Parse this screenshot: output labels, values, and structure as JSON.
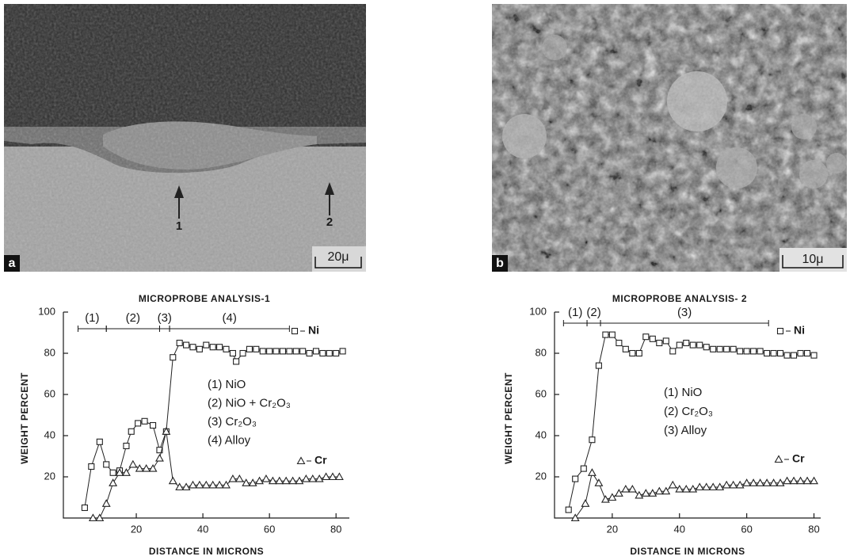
{
  "micrographs": [
    {
      "label": "a",
      "scale": "20μ",
      "arrows": [
        "1",
        "2"
      ]
    },
    {
      "label": "b",
      "scale": "10μ"
    }
  ],
  "chart_data": [
    {
      "type": "line",
      "title": "MICROPROBE ANALYSIS-1",
      "x_label": "DISTANCE IN MICRONS",
      "y_label": "WEIGHT PERCENT",
      "xlim": [
        0,
        84
      ],
      "ylim": [
        0,
        100
      ],
      "xticks": [
        20,
        40,
        60,
        80
      ],
      "yticks": [
        20,
        40,
        60,
        80,
        100
      ],
      "regions": [
        {
          "label": "(1)",
          "start": 2.5,
          "end": 11
        },
        {
          "label": "(2)",
          "start": 11,
          "end": 27
        },
        {
          "label": "(3)",
          "start": 27,
          "end": 30
        },
        {
          "label": "(4)",
          "start": 30,
          "end": 66
        }
      ],
      "region_legend": [
        "(1) NiO",
        "(2) NiO + Cr₂O₃",
        "(3) Cr₂O₃",
        "(4) Alloy"
      ],
      "series": [
        {
          "name": "Ni",
          "marker": "square",
          "color": "#222222",
          "x": [
            4.5,
            6.5,
            9,
            11,
            13,
            15,
            17,
            18.5,
            20.5,
            22.5,
            25,
            27,
            29,
            31,
            33,
            35,
            37,
            39,
            41,
            43,
            45,
            47,
            49,
            50,
            52,
            54,
            56,
            58,
            60,
            62,
            64,
            66,
            68,
            70,
            72,
            74,
            76,
            78,
            80,
            82
          ],
          "values": [
            5,
            25,
            37,
            26,
            22,
            23,
            35,
            42,
            46,
            47,
            45,
            33,
            42,
            78,
            85,
            84,
            83,
            82,
            84,
            83,
            83,
            82,
            80,
            76,
            80,
            82,
            82,
            81,
            81,
            81,
            81,
            81,
            81,
            81,
            80,
            81,
            80,
            80,
            80,
            81
          ]
        },
        {
          "name": "Cr",
          "marker": "triangle",
          "color": "#222222",
          "x": [
            7,
            9,
            11,
            13,
            15,
            17,
            19,
            21,
            23,
            25,
            27,
            29,
            31,
            33,
            35,
            37,
            39,
            41,
            43,
            45,
            47,
            49,
            51,
            53,
            55,
            57,
            59,
            61,
            63,
            65,
            67,
            69,
            71,
            73,
            75,
            77,
            79,
            81
          ],
          "values": [
            0,
            0,
            7,
            17,
            22,
            22,
            26,
            24,
            24,
            24,
            29,
            42,
            18,
            15,
            15,
            16,
            16,
            16,
            16,
            16,
            16,
            19,
            19,
            17,
            17,
            18,
            19,
            18,
            18,
            18,
            18,
            18,
            19,
            19,
            19,
            20,
            20,
            20
          ]
        }
      ]
    },
    {
      "type": "line",
      "title": "MICROPROBE ANALYSIS- 2",
      "x_label": "DISTANCE IN MICRONS",
      "y_label": "WEIGHT PERCENT",
      "xlim": [
        0,
        82
      ],
      "ylim": [
        0,
        100
      ],
      "xticks": [
        20,
        40,
        60,
        80
      ],
      "yticks": [
        20,
        40,
        60,
        80,
        100
      ],
      "regions": [
        {
          "label": "(1)",
          "start": 5.5,
          "end": 12.5
        },
        {
          "label": "(2)",
          "start": 12.5,
          "end": 16.5
        },
        {
          "label": "(3)",
          "start": 16.5,
          "end": 66.5
        }
      ],
      "region_legend": [
        "(1) NiO",
        "(2) Cr₂O₃",
        "(3) Alloy"
      ],
      "series": [
        {
          "name": "Ni",
          "marker": "square",
          "color": "#222222",
          "x": [
            7,
            9,
            11.5,
            14,
            16,
            18,
            20,
            22,
            24,
            26,
            28,
            30,
            32,
            34,
            36,
            38,
            40,
            42,
            44,
            46,
            48,
            50,
            52,
            54,
            56,
            58,
            60,
            62,
            64,
            66,
            68,
            70,
            72,
            74,
            76,
            78,
            80
          ],
          "values": [
            4,
            19,
            24,
            38,
            74,
            89,
            89,
            85,
            82,
            80,
            80,
            88,
            87,
            85,
            86,
            81,
            84,
            85,
            84,
            84,
            83,
            82,
            82,
            82,
            82,
            81,
            81,
            81,
            81,
            80,
            80,
            80,
            79,
            79,
            80,
            80,
            79
          ]
        },
        {
          "name": "Cr",
          "marker": "triangle",
          "color": "#222222",
          "x": [
            9,
            12,
            14,
            16,
            18,
            20,
            22,
            24,
            26,
            28,
            30,
            32,
            34,
            36,
            38,
            40,
            42,
            44,
            46,
            48,
            50,
            52,
            54,
            56,
            58,
            60,
            62,
            64,
            66,
            68,
            70,
            72,
            74,
            76,
            78,
            80
          ],
          "values": [
            0,
            7,
            22,
            17,
            9,
            10,
            12,
            14,
            14,
            11,
            12,
            12,
            13,
            13,
            16,
            14,
            14,
            14,
            15,
            15,
            15,
            15,
            16,
            16,
            16,
            17,
            17,
            17,
            17,
            17,
            17,
            18,
            18,
            18,
            18,
            18
          ]
        }
      ]
    }
  ]
}
